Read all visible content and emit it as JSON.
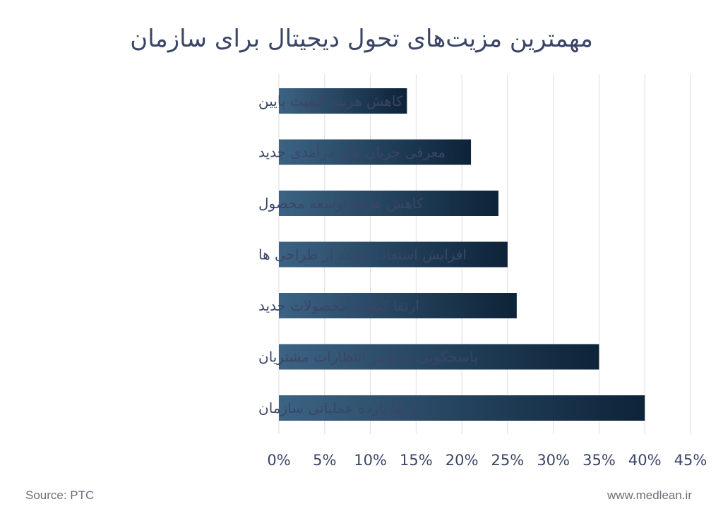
{
  "chart_data": {
    "type": "bar",
    "orientation": "horizontal",
    "title": "مهمترین مزیت‌های تحول دیجیتال برای سازمان",
    "categories": [
      "کاهش هزینه کیفیت پایین",
      "معرفی جریان های درآمدی جدید",
      "کاهش هزینه توسعه محصول",
      "افزایش استفاده مجدد از طراحی ها",
      "ارتقا کیفیت محصولات جدید",
      "پاسخگویی به تغییر انتظارات مشتریان",
      "ارتقا بازده عملیاتی سازمان"
    ],
    "values": [
      14,
      21,
      24,
      25,
      26,
      35,
      40
    ],
    "unit": "%",
    "xlim": [
      0,
      45
    ],
    "x_ticks": [
      "0%",
      "5%",
      "10%",
      "15%",
      "20%",
      "25%",
      "30%",
      "35%",
      "40%",
      "45%"
    ],
    "grid": true,
    "bar_gradient": [
      "#3c6384",
      "#0d2338"
    ]
  },
  "footer": {
    "source": "Source: PTC",
    "website": "www.medlean.ir"
  }
}
